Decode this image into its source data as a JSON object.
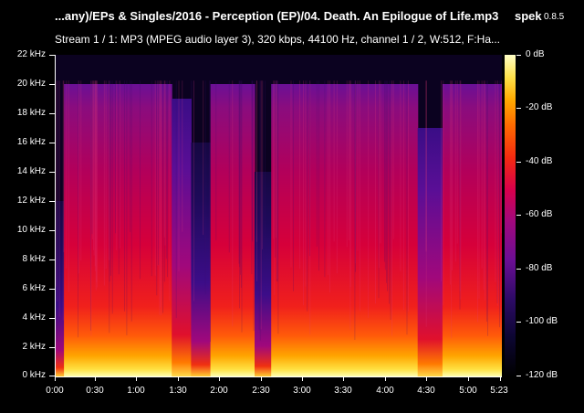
{
  "header": {
    "title": "...any)/EPs & Singles/2016 - Perception (EP)/04. Death. An Epilogue of Life.mp3",
    "app_name": "spek",
    "app_version": "0.8.5",
    "stream_info": "Stream 1 / 1: MP3 (MPEG audio layer 3), 320 kbps, 44100 Hz, channel 1 / 2, W:512, F:Ha..."
  },
  "colors": {
    "background": "#000000",
    "text": "#ffffff"
  },
  "chart_data": {
    "type": "heatmap",
    "title": "",
    "xlabel": "",
    "ylabel": "",
    "x_ticks": [
      "0:00",
      "0:30",
      "1:00",
      "1:30",
      "2:00",
      "2:30",
      "3:00",
      "3:30",
      "4:00",
      "4:30",
      "5:00",
      "5:23"
    ],
    "y_ticks": [
      "0 kHz",
      "2 kHz",
      "4 kHz",
      "6 kHz",
      "8 kHz",
      "10 kHz",
      "12 kHz",
      "14 kHz",
      "16 kHz",
      "18 kHz",
      "20 kHz",
      "22 kHz"
    ],
    "xlim_seconds": [
      0,
      323
    ],
    "ylim_khz": [
      0,
      22
    ],
    "colorbar": {
      "labels": [
        "0 dB",
        "-20 dB",
        "-40 dB",
        "-60 dB",
        "-80 dB",
        "-100 dB",
        "-120 dB"
      ],
      "range_db": [
        -120,
        0
      ],
      "colors": [
        "#000000",
        "#0c0631",
        "#2d0a66",
        "#6b0e94",
        "#a1087e",
        "#d8004c",
        "#f42a10",
        "#ff6a00",
        "#ffaa00",
        "#ffe14a",
        "#ffffc8"
      ]
    },
    "segments": [
      {
        "start_s": 0,
        "end_s": 6,
        "top_khz": 12,
        "level": "quiet"
      },
      {
        "start_s": 6,
        "end_s": 17,
        "top_khz": 20,
        "level": "loud"
      },
      {
        "start_s": 17,
        "end_s": 25,
        "top_khz": 20,
        "level": "loud"
      },
      {
        "start_s": 25,
        "end_s": 84,
        "top_khz": 20,
        "level": "loud"
      },
      {
        "start_s": 84,
        "end_s": 98,
        "top_khz": 19,
        "level": "medium"
      },
      {
        "start_s": 98,
        "end_s": 112,
        "top_khz": 16,
        "level": "quiet"
      },
      {
        "start_s": 112,
        "end_s": 144,
        "top_khz": 20,
        "level": "loud"
      },
      {
        "start_s": 144,
        "end_s": 156,
        "top_khz": 14,
        "level": "quiet"
      },
      {
        "start_s": 156,
        "end_s": 262,
        "top_khz": 20,
        "level": "loud"
      },
      {
        "start_s": 262,
        "end_s": 280,
        "top_khz": 17,
        "level": "medium"
      },
      {
        "start_s": 280,
        "end_s": 323,
        "top_khz": 20,
        "level": "loud"
      }
    ]
  }
}
